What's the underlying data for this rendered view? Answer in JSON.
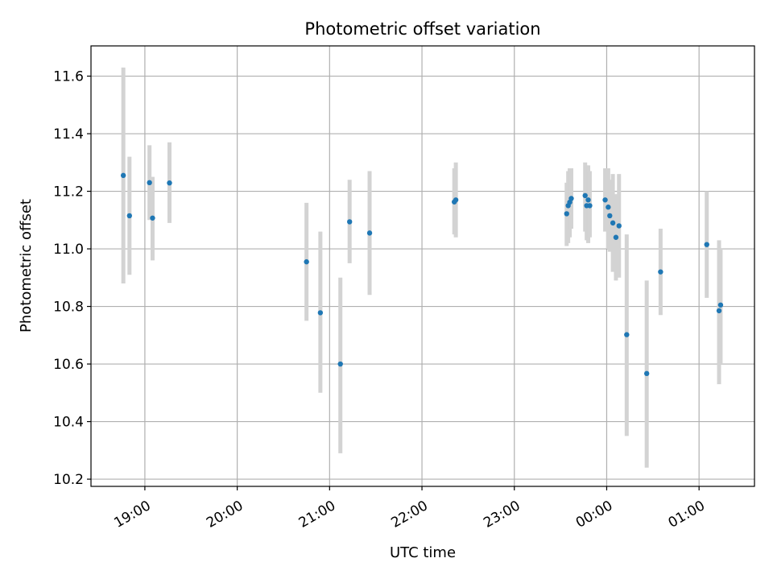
{
  "chart_data": {
    "type": "scatter",
    "title": "Photometric offset variation",
    "xlabel": "UTC time",
    "ylabel": "Photometric offset",
    "x_axis_kind": "time",
    "xlim": [
      "18:25",
      "01:36"
    ],
    "ylim": [
      10.175,
      11.705
    ],
    "x_ticks": [
      "19:00",
      "20:00",
      "21:00",
      "22:00",
      "23:00",
      "00:00",
      "01:00"
    ],
    "y_ticks": [
      "10.2",
      "10.4",
      "10.6",
      "10.8",
      "11.0",
      "11.2",
      "11.4",
      "11.6"
    ],
    "grid": true,
    "point_color": "#1f77b4",
    "errorbar_color": "#d3d3d3",
    "points": [
      {
        "t": "18:46",
        "y": 11.255,
        "lo": 10.88,
        "hi": 11.63
      },
      {
        "t": "18:50",
        "y": 11.115,
        "lo": 10.91,
        "hi": 11.32
      },
      {
        "t": "19:03",
        "y": 11.23,
        "lo": 11.1,
        "hi": 11.36
      },
      {
        "t": "19:05",
        "y": 11.107,
        "lo": 10.96,
        "hi": 11.25
      },
      {
        "t": "19:16",
        "y": 11.229,
        "lo": 11.09,
        "hi": 11.37
      },
      {
        "t": "20:45",
        "y": 10.955,
        "lo": 10.75,
        "hi": 11.16
      },
      {
        "t": "20:54",
        "y": 10.778,
        "lo": 10.5,
        "hi": 11.06
      },
      {
        "t": "21:07",
        "y": 10.6,
        "lo": 10.29,
        "hi": 10.9
      },
      {
        "t": "21:13",
        "y": 11.094,
        "lo": 10.95,
        "hi": 11.24
      },
      {
        "t": "21:26",
        "y": 11.055,
        "lo": 10.84,
        "hi": 11.27
      },
      {
        "t": "22:21",
        "y": 11.163,
        "lo": 11.05,
        "hi": 11.28
      },
      {
        "t": "22:22",
        "y": 11.17,
        "lo": 11.04,
        "hi": 11.3
      },
      {
        "t": "23:34",
        "y": 11.122,
        "lo": 11.01,
        "hi": 11.23
      },
      {
        "t": "23:35",
        "y": 11.15,
        "lo": 11.02,
        "hi": 11.27
      },
      {
        "t": "23:36",
        "y": 11.162,
        "lo": 11.04,
        "hi": 11.28
      },
      {
        "t": "23:37",
        "y": 11.175,
        "lo": 11.07,
        "hi": 11.28
      },
      {
        "t": "23:46",
        "y": 11.185,
        "lo": 11.06,
        "hi": 11.3
      },
      {
        "t": "23:47",
        "y": 11.15,
        "lo": 11.03,
        "hi": 11.29
      },
      {
        "t": "23:48",
        "y": 11.17,
        "lo": 11.02,
        "hi": 11.29
      },
      {
        "t": "23:49",
        "y": 11.15,
        "lo": 11.04,
        "hi": 11.27
      },
      {
        "t": "23:59",
        "y": 11.17,
        "lo": 11.06,
        "hi": 11.28
      },
      {
        "t": "00:01",
        "y": 11.145,
        "lo": 11.0,
        "hi": 11.28
      },
      {
        "t": "00:02",
        "y": 11.115,
        "lo": 10.99,
        "hi": 11.24
      },
      {
        "t": "00:04",
        "y": 11.09,
        "lo": 10.92,
        "hi": 11.26
      },
      {
        "t": "00:06",
        "y": 11.04,
        "lo": 10.89,
        "hi": 11.19
      },
      {
        "t": "00:08",
        "y": 11.08,
        "lo": 10.9,
        "hi": 11.26
      },
      {
        "t": "00:13",
        "y": 10.702,
        "lo": 10.35,
        "hi": 11.05
      },
      {
        "t": "00:26",
        "y": 10.567,
        "lo": 10.24,
        "hi": 10.89
      },
      {
        "t": "00:35",
        "y": 10.92,
        "lo": 10.77,
        "hi": 11.07
      },
      {
        "t": "01:05",
        "y": 11.015,
        "lo": 10.83,
        "hi": 11.2
      },
      {
        "t": "01:13",
        "y": 10.785,
        "lo": 10.53,
        "hi": 11.03
      },
      {
        "t": "01:14",
        "y": 10.805,
        "lo": 10.6,
        "hi": 11.0
      }
    ]
  }
}
